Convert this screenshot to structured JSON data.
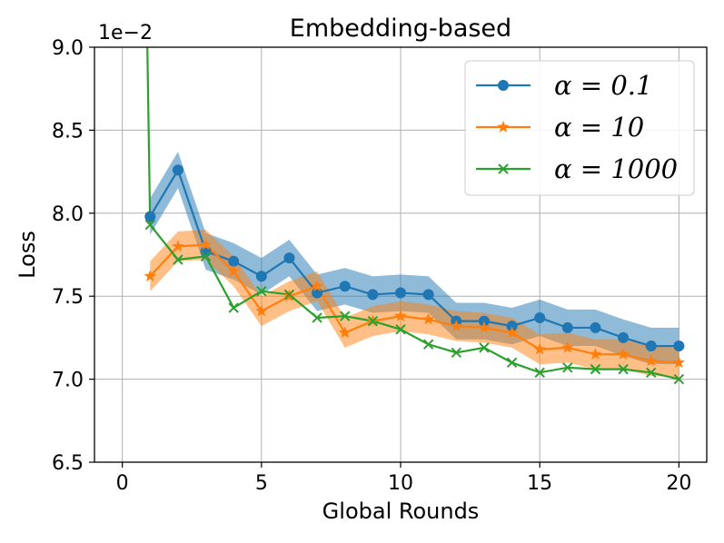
{
  "chart_data": {
    "type": "line",
    "title": "Embedding-based",
    "xlabel": "Global Rounds",
    "ylabel": "Loss",
    "offset_label": "1e−2",
    "xlim": [
      -1,
      21
    ],
    "ylim": [
      6.5,
      9.0
    ],
    "xticks": [
      0,
      5,
      10,
      15,
      20
    ],
    "xtick_labels": [
      "0",
      "5",
      "10",
      "15",
      "20"
    ],
    "yticks": [
      6.5,
      7.0,
      7.5,
      8.0,
      8.5,
      9.0
    ],
    "ytick_labels": [
      "6.5",
      "7.0",
      "7.5",
      "8.0",
      "8.5",
      "9.0"
    ],
    "grid": true,
    "legend_position": "top-right",
    "x": [
      1,
      2,
      3,
      4,
      5,
      6,
      7,
      8,
      9,
      10,
      11,
      12,
      13,
      14,
      15,
      16,
      17,
      18,
      19,
      20
    ],
    "series": [
      {
        "name": "α = 0.1",
        "color": "#1f77b4",
        "marker": "circle",
        "values": [
          7.98,
          8.26,
          7.77,
          7.71,
          7.62,
          7.73,
          7.52,
          7.56,
          7.51,
          7.52,
          7.51,
          7.35,
          7.35,
          7.32,
          7.37,
          7.31,
          7.31,
          7.25,
          7.2,
          7.2
        ],
        "band": 0.11,
        "start": null
      },
      {
        "name": "α = 10",
        "color": "#ff7f0e",
        "marker": "star",
        "values": [
          7.62,
          7.8,
          7.81,
          7.65,
          7.41,
          7.5,
          7.56,
          7.28,
          7.35,
          7.38,
          7.36,
          7.32,
          7.31,
          7.28,
          7.18,
          7.19,
          7.15,
          7.15,
          7.11,
          7.1
        ],
        "band": 0.09,
        "start": null
      },
      {
        "name": "α = 1000",
        "color": "#2ca02c",
        "marker": "x",
        "values": [
          7.93,
          7.72,
          7.74,
          7.43,
          7.53,
          7.51,
          7.37,
          7.38,
          7.35,
          7.3,
          7.21,
          7.16,
          7.19,
          7.1,
          7.04,
          7.07,
          7.06,
          7.06,
          7.04,
          7.0
        ],
        "band": 0,
        "start": {
          "x": 0.9,
          "y": 9.0
        }
      }
    ]
  }
}
